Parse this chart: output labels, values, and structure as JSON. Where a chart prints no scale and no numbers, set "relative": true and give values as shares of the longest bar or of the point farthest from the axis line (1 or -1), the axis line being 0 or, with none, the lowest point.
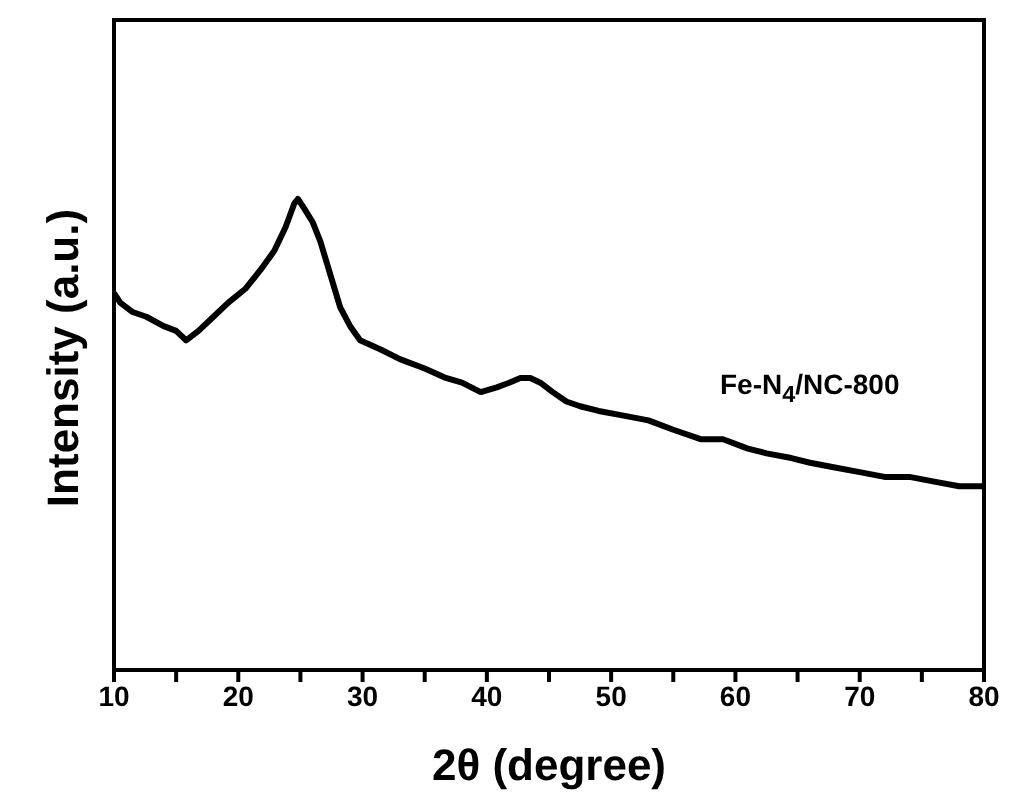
{
  "chart_data": {
    "type": "line",
    "relative": true,
    "xlabel": "2θ (degree)",
    "ylabel": "Intensity (a.u.)",
    "xlim": [
      10,
      80
    ],
    "xticks": [
      10,
      {
        "value": 15,
        "label": null
      },
      20,
      {
        "value": 25,
        "label": null
      },
      30,
      {
        "value": 35,
        "label": null
      },
      40,
      {
        "value": 45,
        "label": null
      },
      50,
      {
        "value": 55,
        "label": null
      },
      60,
      {
        "value": 65,
        "label": null
      },
      70,
      {
        "value": 75,
        "label": null
      },
      80
    ],
    "legend": false,
    "marker": "none",
    "line_style": "solid",
    "series": [
      {
        "name": "Fe-N$_{4}$/NC-800",
        "color": "#000000",
        "x": [
          10,
          10.5,
          11.5,
          12.6,
          14,
          15,
          15.8,
          16.8,
          18,
          19.2,
          20.6,
          21.8,
          22.9,
          23.8,
          24.5,
          24.8,
          25.3,
          26,
          26.6,
          27.4,
          28.2,
          29,
          29.8,
          31.5,
          33,
          35,
          36.7,
          38,
          39.5,
          40.8,
          41.8,
          42.7,
          43.5,
          44.3,
          45.3,
          46.4,
          47.5,
          49,
          51,
          53,
          55,
          57.2,
          59,
          61,
          62.5,
          64.5,
          66,
          68,
          70,
          72,
          74,
          76,
          78,
          80
        ],
        "values": [
          0.8,
          0.78,
          0.76,
          0.75,
          0.73,
          0.72,
          0.7,
          0.72,
          0.75,
          0.78,
          0.81,
          0.85,
          0.89,
          0.94,
          0.99,
          1,
          0.98,
          0.95,
          0.91,
          0.84,
          0.77,
          0.73,
          0.7,
          0.68,
          0.66,
          0.64,
          0.62,
          0.61,
          0.59,
          0.6,
          0.61,
          0.62,
          0.62,
          0.61,
          0.59,
          0.57,
          0.56,
          0.55,
          0.54,
          0.53,
          0.51,
          0.49,
          0.49,
          0.47,
          0.46,
          0.45,
          0.44,
          0.43,
          0.42,
          0.41,
          0.41,
          0.4,
          0.39,
          0.39
        ]
      }
    ]
  }
}
